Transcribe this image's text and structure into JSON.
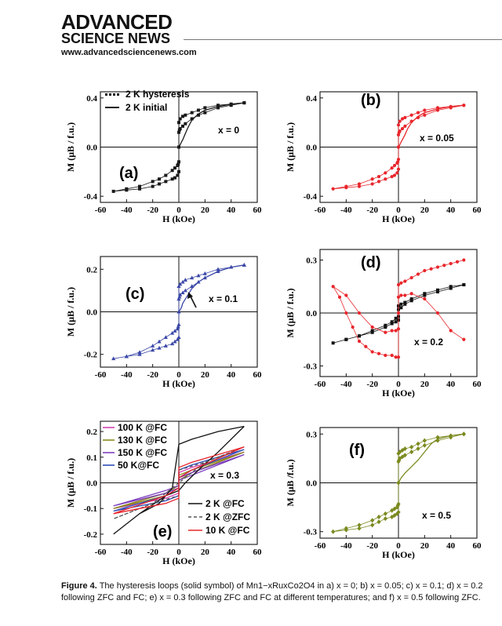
{
  "header": {
    "logo_line1": "ADVANCED",
    "logo_line2": "SCIENCE NEWS",
    "url": "www.advancedsciencenews.com"
  },
  "caption": {
    "label": "Figure 4.",
    "text": "The hysteresis loops (solid symbol) of Mn1−xRuxCo2O4 in a) x = 0; b) x = 0.05; c) x = 0.1; d) x = 0.2 following ZFC and FC; e) x = 0.3 following ZFC and FC at different temperatures; and f) x = 0.5 following ZFC."
  },
  "chart_data": [
    {
      "type": "line",
      "id": "a",
      "panel_label": "(a)",
      "annotation": "x = 0",
      "xlabel": "H (kOe)",
      "ylabel": "M (μB / f.u.)",
      "xlim": [
        -60,
        60
      ],
      "ylim": [
        -0.45,
        0.45
      ],
      "xticks": [
        "-60",
        "-40",
        "-20",
        "0",
        "20",
        "40",
        "60"
      ],
      "yticks": [
        "-0.4",
        "0.0",
        "0.4"
      ],
      "ytick_values": [
        -0.4,
        0.0,
        0.4
      ],
      "legend": [
        "2 K hysteresis",
        "2 K initial"
      ],
      "legend_position": "top-left",
      "color": "#1a1a1a",
      "series": [
        {
          "name": "2 K hysteresis",
          "style": "markers",
          "x": [
            50,
            40,
            30,
            20,
            15,
            10,
            5,
            3,
            1,
            0,
            0,
            0,
            -0.5,
            -1,
            -3,
            -5,
            -10,
            -15,
            -20,
            -30,
            -40,
            -50,
            -40,
            -30,
            -20,
            -15,
            -10,
            -5,
            -3,
            -1,
            0,
            0,
            0,
            0.5,
            1,
            3,
            5,
            10,
            15,
            20,
            30,
            40,
            50
          ],
          "y": [
            0.36,
            0.35,
            0.34,
            0.32,
            0.3,
            0.28,
            0.26,
            0.25,
            0.23,
            0.2,
            0.0,
            -0.12,
            -0.14,
            -0.15,
            -0.17,
            -0.19,
            -0.23,
            -0.26,
            -0.28,
            -0.32,
            -0.34,
            -0.36,
            -0.35,
            -0.34,
            -0.32,
            -0.3,
            -0.28,
            -0.26,
            -0.25,
            -0.23,
            -0.2,
            0.0,
            0.12,
            0.14,
            0.15,
            0.17,
            0.19,
            0.23,
            0.26,
            0.28,
            0.32,
            0.34,
            0.36
          ]
        },
        {
          "name": "2 K initial",
          "style": "line",
          "x": [
            0,
            1,
            2,
            3,
            5,
            7,
            10,
            15,
            20,
            30,
            40,
            50
          ],
          "y": [
            0,
            0.02,
            0.04,
            0.06,
            0.11,
            0.16,
            0.22,
            0.27,
            0.3,
            0.33,
            0.35,
            0.36
          ]
        }
      ]
    },
    {
      "type": "line",
      "id": "b",
      "panel_label": "(b)",
      "annotation": "x = 0.05",
      "xlabel": "H (kOe)",
      "ylabel": "M (μB / f.u.)",
      "xlim": [
        -60,
        60
      ],
      "ylim": [
        -0.45,
        0.45
      ],
      "xticks": [
        "-60",
        "-40",
        "-20",
        "0",
        "20",
        "40",
        "60"
      ],
      "yticks": [
        "-0.4",
        "0.0",
        "0.4"
      ],
      "ytick_values": [
        -0.4,
        0.0,
        0.4
      ],
      "color": "#e8262c",
      "series": [
        {
          "style": "markers",
          "x": [
            50,
            40,
            30,
            20,
            15,
            10,
            5,
            3,
            1,
            0,
            0,
            0,
            -0.5,
            -1,
            -3,
            -5,
            -10,
            -15,
            -20,
            -30,
            -40,
            -50,
            -40,
            -30,
            -20,
            -15,
            -10,
            -5,
            -3,
            -1,
            0,
            0,
            0,
            0.5,
            1,
            3,
            5,
            10,
            15,
            20,
            30,
            40,
            50
          ],
          "y": [
            0.34,
            0.33,
            0.32,
            0.3,
            0.28,
            0.26,
            0.24,
            0.23,
            0.21,
            0.18,
            0.0,
            -0.1,
            -0.12,
            -0.13,
            -0.15,
            -0.17,
            -0.21,
            -0.24,
            -0.26,
            -0.3,
            -0.32,
            -0.34,
            -0.33,
            -0.32,
            -0.3,
            -0.28,
            -0.26,
            -0.24,
            -0.23,
            -0.21,
            -0.18,
            0.0,
            0.1,
            0.12,
            0.13,
            0.15,
            0.17,
            0.21,
            0.24,
            0.26,
            0.3,
            0.32,
            0.34
          ]
        },
        {
          "style": "line",
          "x": [
            0,
            1,
            2,
            3,
            5,
            7,
            10,
            15,
            20,
            30,
            40,
            50
          ],
          "y": [
            0,
            0.02,
            0.04,
            0.06,
            0.1,
            0.15,
            0.2,
            0.25,
            0.28,
            0.31,
            0.33,
            0.34
          ]
        }
      ]
    },
    {
      "type": "line",
      "id": "c",
      "panel_label": "(c)",
      "annotation": "x = 0.1",
      "xlabel": "H (kOe)",
      "ylabel": "M (μB / f.u.)",
      "xlim": [
        -60,
        60
      ],
      "ylim": [
        -0.26,
        0.26
      ],
      "xticks": [
        "-60",
        "-40",
        "-20",
        "0",
        "20",
        "40",
        "60"
      ],
      "yticks": [
        "-0.2",
        "0.0",
        "0.2"
      ],
      "ytick_values": [
        -0.2,
        0.0,
        0.2
      ],
      "color": "#3b48a8",
      "series": [
        {
          "style": "markers",
          "x": [
            50,
            40,
            30,
            20,
            15,
            10,
            5,
            3,
            1,
            0,
            0,
            0,
            -0.5,
            -1,
            -3,
            -5,
            -10,
            -15,
            -20,
            -30,
            -40,
            -50,
            -40,
            -30,
            -20,
            -15,
            -10,
            -5,
            -3,
            -1,
            0,
            0,
            0,
            0.5,
            1,
            3,
            5,
            10,
            15,
            20,
            30,
            40,
            50
          ],
          "y": [
            0.22,
            0.21,
            0.2,
            0.18,
            0.17,
            0.16,
            0.15,
            0.14,
            0.13,
            0.12,
            0.0,
            -0.06,
            -0.07,
            -0.08,
            -0.09,
            -0.1,
            -0.12,
            -0.14,
            -0.16,
            -0.19,
            -0.21,
            -0.22,
            -0.21,
            -0.2,
            -0.18,
            -0.17,
            -0.16,
            -0.15,
            -0.14,
            -0.13,
            -0.12,
            0.0,
            0.06,
            0.07,
            0.08,
            0.09,
            0.1,
            0.12,
            0.14,
            0.16,
            0.19,
            0.21,
            0.22
          ]
        },
        {
          "style": "line",
          "x": [
            0,
            1,
            2,
            3,
            5,
            7,
            10,
            15,
            20,
            30,
            40,
            50
          ],
          "y": [
            0,
            0.01,
            0.02,
            0.04,
            0.06,
            0.08,
            0.11,
            0.14,
            0.16,
            0.19,
            0.21,
            0.22
          ]
        }
      ]
    },
    {
      "type": "line",
      "id": "d",
      "panel_label": "(d)",
      "annotation": "x = 0.2",
      "xlabel": "H (kOe)",
      "ylabel": "M (μB / f.u.)",
      "xlim": [
        -60,
        60
      ],
      "ylim": [
        -0.36,
        0.36
      ],
      "xticks": [
        "-60",
        "-40",
        "-20",
        "0",
        "20",
        "40",
        "60"
      ],
      "yticks": [
        "-0.3",
        "0.0",
        "0.3"
      ],
      "ytick_values": [
        -0.3,
        0.0,
        0.3
      ],
      "series": [
        {
          "style": "markers",
          "color": "#111111",
          "x": [
            50,
            40,
            30,
            20,
            10,
            5,
            2,
            0,
            0,
            -2,
            -5,
            -10,
            -20,
            -30,
            -40,
            -50,
            -40,
            -30,
            -20,
            -10,
            -5,
            -2,
            0,
            0,
            2,
            5,
            10,
            20,
            30,
            40,
            50
          ],
          "y": [
            0.16,
            0.14,
            0.12,
            0.1,
            0.07,
            0.05,
            0.03,
            0.02,
            -0.04,
            -0.05,
            -0.06,
            -0.08,
            -0.11,
            -0.13,
            -0.15,
            -0.17,
            -0.15,
            -0.13,
            -0.1,
            -0.07,
            -0.05,
            -0.03,
            -0.02,
            0.04,
            0.05,
            0.06,
            0.08,
            0.11,
            0.13,
            0.15,
            0.16
          ]
        },
        {
          "style": "markers",
          "color": "#e8262c",
          "x": [
            50,
            45,
            40,
            35,
            30,
            25,
            20,
            15,
            10,
            5,
            2,
            0,
            0,
            0,
            -2,
            -5,
            -10,
            -20,
            -30,
            -40,
            -50,
            -45,
            -40,
            -35,
            -30,
            -25,
            -20,
            -15,
            -10,
            -5,
            -2,
            0,
            0,
            0,
            2,
            5,
            10,
            20,
            30,
            40,
            50
          ],
          "y": [
            0.3,
            0.29,
            0.28,
            0.27,
            0.26,
            0.25,
            0.24,
            0.22,
            0.2,
            0.18,
            0.17,
            0.16,
            0.0,
            -0.09,
            -0.1,
            -0.1,
            -0.11,
            -0.08,
            0.0,
            0.1,
            0.15,
            0.09,
            0.0,
            -0.08,
            -0.16,
            -0.19,
            -0.22,
            -0.23,
            -0.24,
            -0.24,
            -0.25,
            -0.25,
            0.0,
            0.09,
            0.1,
            0.1,
            0.11,
            0.08,
            0.0,
            -0.1,
            -0.15
          ]
        }
      ]
    },
    {
      "type": "line",
      "id": "e",
      "panel_label": "(e)",
      "annotation": "x = 0.3",
      "xlabel": "H (kOe)",
      "ylabel": "M (μB / f.u.)",
      "xlim": [
        -60,
        60
      ],
      "ylim": [
        -0.24,
        0.24
      ],
      "xticks": [
        "-60",
        "-40",
        "-20",
        "0",
        "20",
        "40",
        "60"
      ],
      "yticks": [
        "-0.2",
        "-0.1",
        "0.0",
        "0.1",
        "0.2"
      ],
      "ytick_values": [
        -0.2,
        -0.1,
        0.0,
        0.1,
        0.2
      ],
      "legend_position": "top-left and bottom-right",
      "series": [
        {
          "name": "100 K @FC",
          "color": "#d63fb4",
          "dash": "solid",
          "x": [
            -50,
            -10,
            0,
            0,
            10,
            50,
            10,
            0,
            0,
            -10,
            -50
          ],
          "y": [
            -0.1,
            -0.04,
            -0.01,
            0.04,
            0.06,
            0.12,
            0.04,
            0.01,
            -0.04,
            -0.06,
            -0.1
          ]
        },
        {
          "name": "130 K @FC",
          "color": "#8a8a1c",
          "dash": "solid",
          "x": [
            -50,
            -10,
            0,
            0,
            10,
            50,
            10,
            0,
            0,
            -10,
            -50
          ],
          "y": [
            -0.1,
            -0.04,
            -0.01,
            0.03,
            0.05,
            0.12,
            0.04,
            0.01,
            -0.03,
            -0.05,
            -0.1
          ]
        },
        {
          "name": "150 K @FC",
          "color": "#7d3fbf",
          "dash": "solid",
          "x": [
            -50,
            -10,
            0,
            0,
            10,
            50,
            10,
            0,
            0,
            -10,
            -50
          ],
          "y": [
            -0.09,
            -0.03,
            -0.01,
            0.02,
            0.04,
            0.11,
            0.03,
            0.01,
            -0.02,
            -0.04,
            -0.09
          ]
        },
        {
          "name": "50 K@FC",
          "color": "#2f4fb8",
          "dash": "solid",
          "x": [
            -50,
            -10,
            0,
            0,
            10,
            50,
            10,
            0,
            0,
            -10,
            -50
          ],
          "y": [
            -0.11,
            -0.05,
            -0.02,
            0.05,
            0.07,
            0.13,
            0.05,
            0.02,
            -0.05,
            -0.07,
            -0.11
          ]
        },
        {
          "name": "2 K @FC",
          "color": "#111111",
          "dash": "solid",
          "x": [
            50,
            30,
            10,
            0,
            -5,
            -15,
            -30,
            -50,
            -30,
            -10,
            0,
            5,
            15,
            30,
            50
          ],
          "y": [
            0.22,
            0.2,
            0.17,
            0.15,
            -0.02,
            -0.08,
            -0.12,
            -0.2,
            -0.12,
            -0.05,
            -0.03,
            0.0,
            0.05,
            0.12,
            0.22
          ]
        },
        {
          "name": "2 K @ZFC",
          "color": "#555555",
          "dash": "dashed",
          "x": [
            50,
            20,
            0,
            0,
            -20,
            -50,
            -20,
            0,
            0,
            20,
            50
          ],
          "y": [
            0.14,
            0.08,
            0.05,
            0.0,
            -0.08,
            -0.14,
            -0.08,
            -0.05,
            0.0,
            0.08,
            0.14
          ]
        },
        {
          "name": "10 K @FC",
          "color": "#e8262c",
          "dash": "solid",
          "x": [
            -50,
            -10,
            0,
            0,
            10,
            50,
            10,
            0,
            0,
            -10,
            -50
          ],
          "y": [
            -0.12,
            -0.05,
            -0.02,
            0.06,
            0.08,
            0.14,
            0.05,
            0.02,
            -0.06,
            -0.08,
            -0.12
          ]
        }
      ]
    },
    {
      "type": "line",
      "id": "f",
      "panel_label": "(f)",
      "annotation": "x = 0.5",
      "xlabel": "H (kOe)",
      "ylabel": "M (μB /f.u.)",
      "xlim": [
        -60,
        60
      ],
      "ylim": [
        -0.34,
        0.34
      ],
      "xticks": [
        "-60",
        "-40",
        "-20",
        "0",
        "20",
        "40",
        "60"
      ],
      "yticks": [
        "-0.3",
        "0.0",
        "0.3"
      ],
      "ytick_values": [
        -0.3,
        0.0,
        0.3
      ],
      "color": "#7b8a1f",
      "series": [
        {
          "style": "markers",
          "x": [
            50,
            40,
            30,
            20,
            15,
            10,
            5,
            3,
            1,
            0,
            0,
            0,
            -0.5,
            -1,
            -3,
            -5,
            -10,
            -15,
            -20,
            -30,
            -40,
            -50,
            -40,
            -30,
            -20,
            -15,
            -10,
            -5,
            -3,
            -1,
            0,
            0,
            0,
            0.5,
            1,
            3,
            5,
            10,
            15,
            20,
            30,
            40,
            50
          ],
          "y": [
            0.3,
            0.29,
            0.28,
            0.26,
            0.24,
            0.22,
            0.21,
            0.2,
            0.19,
            0.18,
            0.0,
            -0.13,
            -0.14,
            -0.15,
            -0.16,
            -0.17,
            -0.19,
            -0.21,
            -0.23,
            -0.26,
            -0.28,
            -0.3,
            -0.29,
            -0.28,
            -0.26,
            -0.24,
            -0.22,
            -0.21,
            -0.2,
            -0.19,
            -0.18,
            0.0,
            0.13,
            0.14,
            0.15,
            0.16,
            0.17,
            0.19,
            0.21,
            0.23,
            0.26,
            0.28,
            0.3
          ]
        },
        {
          "style": "line",
          "x": [
            0,
            2,
            5,
            10,
            15,
            20,
            25,
            30,
            40,
            50
          ],
          "y": [
            0,
            0.03,
            0.06,
            0.1,
            0.14,
            0.19,
            0.24,
            0.27,
            0.29,
            0.3
          ]
        }
      ]
    }
  ]
}
